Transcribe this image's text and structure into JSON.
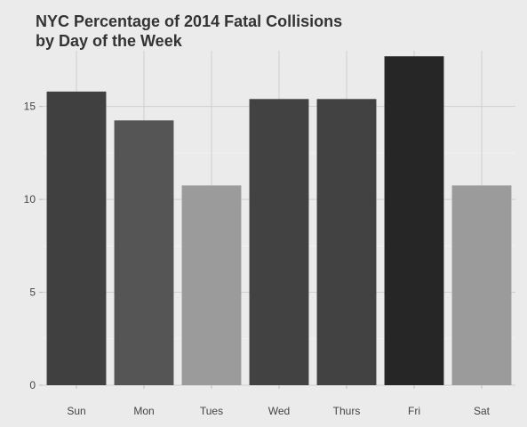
{
  "chart_data": {
    "type": "bar",
    "title_lines": [
      "NYC Percentage of 2014 Fatal Collisions",
      "by Day of the Week"
    ],
    "categories": [
      "Sun",
      "Mon",
      "Tues",
      "Wed",
      "Thurs",
      "Fri",
      "Sat"
    ],
    "values": [
      15.8,
      14.25,
      10.75,
      15.4,
      15.4,
      17.7,
      10.75
    ],
    "bar_colors": [
      "#404040",
      "#555555",
      "#9b9b9b",
      "#424242",
      "#424242",
      "#262626",
      "#9b9b9b"
    ],
    "y_ticks": [
      0,
      5,
      10,
      15
    ],
    "ylim": [
      0,
      18
    ],
    "xlabel": "",
    "ylabel": "",
    "grid": true,
    "legend": "none"
  }
}
